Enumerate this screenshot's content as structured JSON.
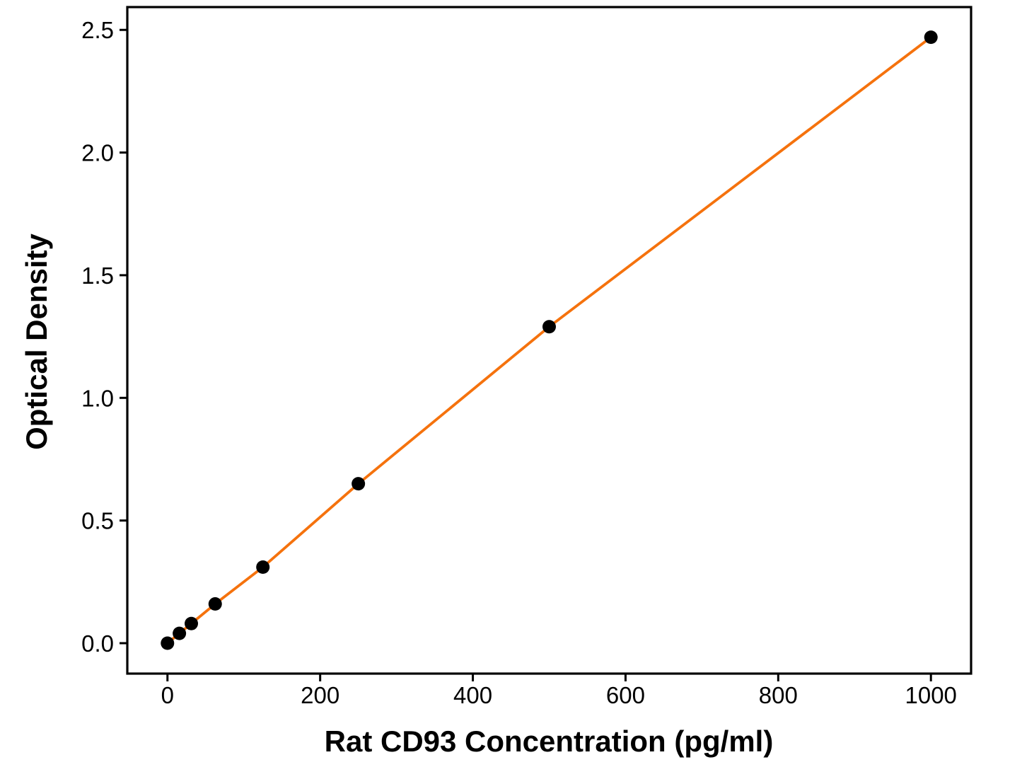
{
  "chart_data": {
    "type": "scatter",
    "title": "",
    "xlabel": "Rat CD93 Concentration (pg/ml)",
    "ylabel": "Optical Density",
    "x": [
      0,
      15.6,
      31.25,
      62.5,
      125,
      250,
      500,
      1000
    ],
    "y": [
      0.0,
      0.04,
      0.08,
      0.16,
      0.31,
      0.65,
      1.29,
      2.47
    ],
    "x_ticks": [
      0,
      200,
      400,
      600,
      800,
      1000
    ],
    "x_tick_labels": [
      "0",
      "200",
      "400",
      "600",
      "800",
      "1000"
    ],
    "y_ticks": [
      0.0,
      0.5,
      1.0,
      1.5,
      2.0,
      2.5
    ],
    "y_tick_labels": [
      "0.0",
      "0.5",
      "1.0",
      "1.5",
      "2.0",
      "2.5"
    ],
    "xlim": [
      -52.6,
      1052.6
    ],
    "ylim": [
      -0.124,
      2.593
    ],
    "grid": false,
    "legend": null,
    "line_color": "#F5720D",
    "marker_color": "#000000",
    "axis_color": "#000000",
    "background": "#FFFFFF"
  }
}
